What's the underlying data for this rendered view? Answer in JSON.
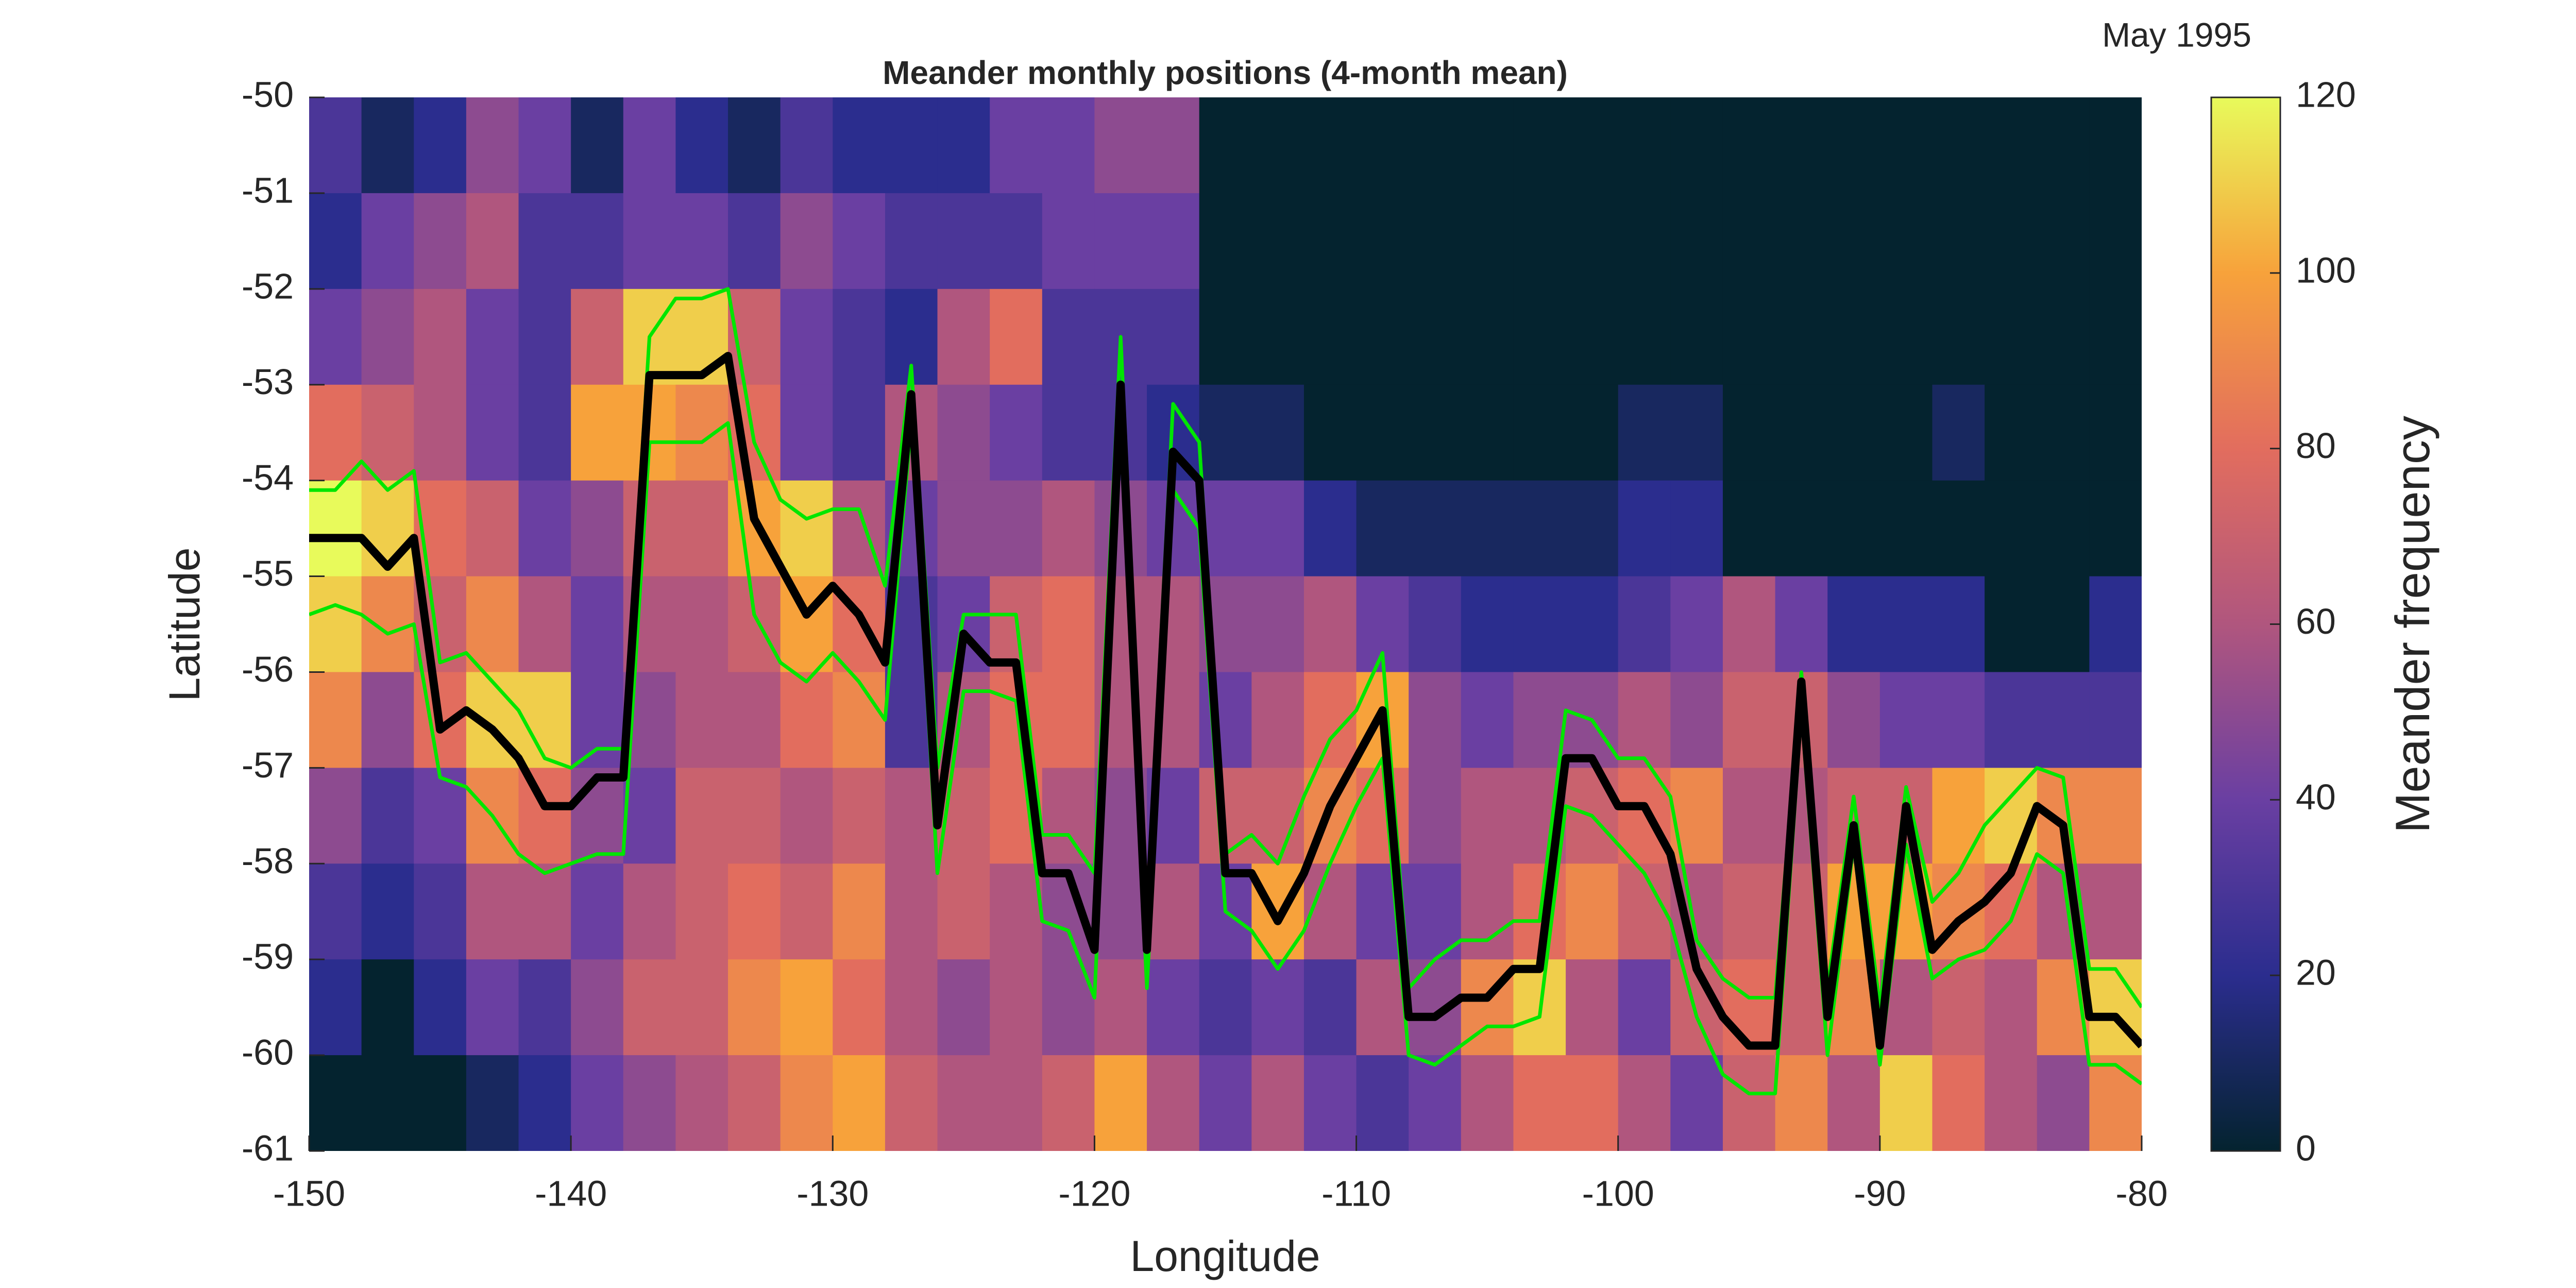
{
  "chart_data": {
    "type": "heatmap",
    "title": "Meander monthly positions (4-month mean)",
    "annotation": "May 1995",
    "x_label": "Longitude",
    "y_label": "Latitude",
    "colorbar_label": "Meander frequency",
    "xlim": [
      -150,
      -80
    ],
    "ylim": [
      -61,
      -50
    ],
    "xticks": [
      -150,
      -140,
      -130,
      -120,
      -110,
      -100,
      -90,
      -80
    ],
    "yticks": [
      -50,
      -51,
      -52,
      -53,
      -54,
      -55,
      -56,
      -57,
      -58,
      -59,
      -60,
      -61
    ],
    "zlim": [
      0,
      120
    ],
    "zticks": [
      0,
      20,
      40,
      60,
      80,
      100,
      120
    ],
    "colormap": [
      "#04232f",
      "#2b2d8e",
      "#6a3fa2",
      "#b0567e",
      "#e26d5e",
      "#f7a23b",
      "#e8fa5b"
    ],
    "x_bins": [
      -150,
      -148,
      -146,
      -144,
      -142,
      -140,
      -138,
      -136,
      -134,
      -132,
      -130,
      -128,
      -126,
      -124,
      -122,
      -120,
      -118,
      -116,
      -114,
      -112,
      -110,
      -108,
      -106,
      -104,
      -102,
      -100,
      -98,
      -96,
      -94,
      -92,
      -90,
      -88,
      -86,
      -84,
      -82,
      -80
    ],
    "y_bins": [
      -50,
      -51,
      -52,
      -53,
      -54,
      -55,
      -56,
      -57,
      -58,
      -59,
      -60,
      -61
    ],
    "z": [
      [
        30,
        10,
        20,
        50,
        40,
        10,
        40,
        20,
        10,
        30,
        20,
        20,
        20,
        40,
        40,
        50,
        50,
        0,
        0,
        0,
        0,
        0,
        0,
        0,
        0,
        0,
        0,
        0,
        0,
        0,
        0,
        0,
        0,
        0,
        0
      ],
      [
        20,
        40,
        50,
        60,
        30,
        30,
        40,
        40,
        30,
        50,
        40,
        30,
        30,
        30,
        40,
        40,
        40,
        0,
        0,
        0,
        0,
        0,
        0,
        0,
        0,
        0,
        0,
        0,
        0,
        0,
        0,
        0,
        0,
        0,
        0
      ],
      [
        40,
        50,
        60,
        40,
        30,
        70,
        110,
        110,
        70,
        40,
        30,
        20,
        60,
        80,
        30,
        30,
        30,
        0,
        0,
        0,
        0,
        0,
        0,
        0,
        0,
        0,
        0,
        0,
        0,
        0,
        0,
        0,
        0,
        0,
        0
      ],
      [
        80,
        70,
        60,
        40,
        30,
        100,
        100,
        90,
        80,
        40,
        30,
        60,
        50,
        40,
        30,
        30,
        20,
        10,
        10,
        0,
        0,
        0,
        0,
        0,
        0,
        10,
        10,
        0,
        0,
        0,
        0,
        10,
        0,
        0,
        0
      ],
      [
        120,
        110,
        80,
        70,
        40,
        50,
        70,
        70,
        100,
        110,
        60,
        40,
        50,
        50,
        60,
        50,
        40,
        40,
        40,
        20,
        10,
        10,
        10,
        10,
        10,
        20,
        20,
        0,
        0,
        0,
        0,
        0,
        0,
        0,
        0
      ],
      [
        110,
        90,
        70,
        90,
        60,
        40,
        60,
        60,
        70,
        100,
        80,
        30,
        40,
        70,
        80,
        60,
        60,
        50,
        50,
        60,
        40,
        30,
        20,
        20,
        20,
        30,
        40,
        60,
        40,
        20,
        20,
        20,
        0,
        0,
        20
      ],
      [
        90,
        50,
        80,
        110,
        110,
        40,
        50,
        60,
        60,
        80,
        90,
        30,
        60,
        80,
        80,
        60,
        60,
        40,
        60,
        80,
        100,
        50,
        40,
        50,
        50,
        60,
        50,
        70,
        70,
        50,
        40,
        40,
        30,
        30,
        30
      ],
      [
        50,
        30,
        40,
        90,
        80,
        50,
        40,
        70,
        70,
        60,
        70,
        60,
        70,
        80,
        60,
        50,
        40,
        70,
        70,
        90,
        80,
        50,
        60,
        60,
        70,
        80,
        90,
        60,
        60,
        70,
        70,
        100,
        110,
        90,
        90
      ],
      [
        30,
        20,
        30,
        60,
        60,
        40,
        60,
        70,
        80,
        70,
        90,
        60,
        70,
        60,
        50,
        50,
        60,
        40,
        100,
        60,
        40,
        40,
        60,
        80,
        90,
        70,
        60,
        70,
        70,
        100,
        100,
        90,
        80,
        60,
        60
      ],
      [
        20,
        0,
        20,
        40,
        30,
        50,
        70,
        70,
        90,
        100,
        80,
        60,
        50,
        60,
        50,
        60,
        40,
        30,
        40,
        30,
        60,
        50,
        90,
        110,
        60,
        40,
        70,
        80,
        70,
        90,
        60,
        70,
        60,
        90,
        110
      ],
      [
        0,
        0,
        0,
        10,
        20,
        40,
        50,
        60,
        70,
        90,
        100,
        70,
        60,
        60,
        70,
        100,
        60,
        40,
        60,
        40,
        30,
        40,
        60,
        80,
        80,
        60,
        40,
        70,
        90,
        60,
        110,
        80,
        60,
        50,
        90
      ]
    ],
    "x": [
      -150,
      -149,
      -148,
      -147,
      -146,
      -145,
      -144,
      -143,
      -142,
      -141,
      -140,
      -139,
      -138,
      -137,
      -136,
      -135,
      -134,
      -133,
      -132,
      -131,
      -130,
      -129,
      -128,
      -127,
      -126,
      -125,
      -124,
      -123,
      -122,
      -121,
      -120,
      -119,
      -118,
      -117,
      -116,
      -115,
      -114,
      -113,
      -112,
      -111,
      -110,
      -109,
      -108,
      -107,
      -106,
      -105,
      -104,
      -103,
      -102,
      -101,
      -100,
      -99,
      -98,
      -97,
      -96,
      -95,
      -94,
      -93,
      -92,
      -91,
      -90,
      -89,
      -88,
      -87,
      -86,
      -85,
      -84,
      -83,
      -82,
      -81,
      -80
    ],
    "series": [
      {
        "color": "#00e600",
        "values": [
          -54.1,
          -54.1,
          -53.8,
          -54.1,
          -53.9,
          -55.9,
          -55.8,
          -56.1,
          -56.4,
          -56.9,
          -57.0,
          -56.8,
          -56.8,
          -52.5,
          -52.1,
          -52.1,
          -52.0,
          -53.6,
          -54.2,
          -54.4,
          -54.3,
          -54.3,
          -55.1,
          -52.8,
          -57.0,
          -55.4,
          -55.4,
          -55.4,
          -57.7,
          -57.7,
          -58.1,
          -52.5,
          -58.5,
          -53.2,
          -53.6,
          -57.9,
          -57.7,
          -58.0,
          -57.3,
          -56.7,
          -56.4,
          -55.8,
          -59.3,
          -59.0,
          -58.8,
          -58.8,
          -58.6,
          -58.6,
          -56.4,
          -56.5,
          -56.9,
          -56.9,
          -57.3,
          -58.8,
          -59.2,
          -59.4,
          -59.4,
          -56.0,
          -59.3,
          -57.3,
          -59.5,
          -57.2,
          -58.4,
          -58.1,
          -57.6,
          -57.3,
          -57.0,
          -57.1,
          -59.1,
          -59.1,
          -59.5
        ]
      },
      {
        "color": "#00e600",
        "values": [
          -55.4,
          -55.3,
          -55.4,
          -55.6,
          -55.5,
          -57.1,
          -57.2,
          -57.5,
          -57.9,
          -58.1,
          -58.0,
          -57.9,
          -57.9,
          -53.6,
          -53.6,
          -53.6,
          -53.4,
          -55.4,
          -55.9,
          -56.1,
          -55.8,
          -56.1,
          -56.5,
          -53.4,
          -58.1,
          -56.2,
          -56.2,
          -56.3,
          -58.6,
          -58.7,
          -59.4,
          -53.4,
          -59.3,
          -54.1,
          -54.5,
          -58.5,
          -58.7,
          -59.1,
          -58.7,
          -58.0,
          -57.4,
          -56.9,
          -60.0,
          -60.1,
          -59.9,
          -59.7,
          -59.7,
          -59.6,
          -57.4,
          -57.5,
          -57.8,
          -58.1,
          -58.6,
          -59.6,
          -60.2,
          -60.4,
          -60.4,
          -56.4,
          -60.0,
          -57.8,
          -60.1,
          -57.8,
          -59.2,
          -59.0,
          -58.9,
          -58.6,
          -57.9,
          -58.1,
          -60.1,
          -60.1,
          -60.3
        ]
      },
      {
        "color": "#000000",
        "values": [
          -54.6,
          -54.6,
          -54.6,
          -54.9,
          -54.6,
          -56.6,
          -56.4,
          -56.6,
          -56.9,
          -57.4,
          -57.4,
          -57.1,
          -57.1,
          -52.9,
          -52.9,
          -52.9,
          -52.7,
          -54.4,
          -54.9,
          -55.4,
          -55.1,
          -55.4,
          -55.9,
          -53.1,
          -57.6,
          -55.6,
          -55.9,
          -55.9,
          -58.1,
          -58.1,
          -58.9,
          -53.0,
          -58.9,
          -53.7,
          -54.0,
          -58.1,
          -58.1,
          -58.6,
          -58.1,
          -57.4,
          -56.9,
          -56.4,
          -59.6,
          -59.6,
          -59.4,
          -59.4,
          -59.1,
          -59.1,
          -56.9,
          -56.9,
          -57.4,
          -57.4,
          -57.9,
          -59.1,
          -59.6,
          -59.9,
          -59.9,
          -56.1,
          -59.6,
          -57.6,
          -59.9,
          -57.4,
          -58.9,
          -58.6,
          -58.4,
          -58.1,
          -57.4,
          -57.6,
          -59.6,
          -59.6,
          -59.9
        ]
      }
    ]
  }
}
